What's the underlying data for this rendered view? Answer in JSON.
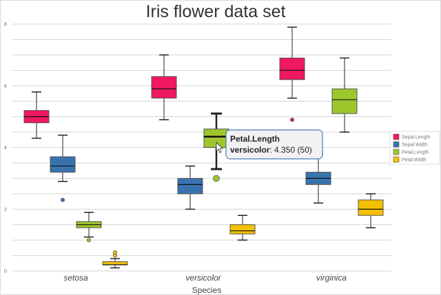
{
  "chart_data": {
    "type": "box",
    "title": "Iris flower data set",
    "xlabel": "Species",
    "ylabel": "",
    "ylim": [
      0,
      8
    ],
    "yticks": [
      0,
      2,
      4,
      6,
      8
    ],
    "grid": true,
    "legend_position": "right",
    "categories": [
      "setosa",
      "versicolor",
      "virginica"
    ],
    "series": [
      {
        "name": "Sepal.Length",
        "color": "#f0185e",
        "boxes": [
          {
            "min": 4.3,
            "q1": 4.8,
            "median": 5.0,
            "q3": 5.2,
            "max": 5.8,
            "outliers": []
          },
          {
            "min": 4.9,
            "q1": 5.6,
            "median": 5.9,
            "q3": 6.3,
            "max": 7.0,
            "outliers": []
          },
          {
            "min": 5.6,
            "q1": 6.2,
            "median": 6.5,
            "q3": 6.9,
            "max": 7.9,
            "outliers": [
              4.9
            ]
          }
        ]
      },
      {
        "name": "Sepal.Width",
        "color": "#3873ae",
        "boxes": [
          {
            "min": 2.9,
            "q1": 3.2,
            "median": 3.4,
            "q3": 3.7,
            "max": 4.4,
            "outliers": [
              2.3
            ]
          },
          {
            "min": 2.0,
            "q1": 2.5,
            "median": 2.8,
            "q3": 3.0,
            "max": 3.4,
            "outliers": []
          },
          {
            "min": 2.2,
            "q1": 2.8,
            "median": 3.0,
            "q3": 3.2,
            "max": 3.8,
            "outliers": []
          }
        ]
      },
      {
        "name": "Petal.Length",
        "color": "#9dc62d",
        "boxes": [
          {
            "min": 1.1,
            "q1": 1.4,
            "median": 1.5,
            "q3": 1.6,
            "max": 1.9,
            "outliers": [
              1.0
            ]
          },
          {
            "min": 3.3,
            "q1": 4.0,
            "median": 4.35,
            "q3": 4.6,
            "max": 5.1,
            "outliers": [
              3.0
            ]
          },
          {
            "min": 4.5,
            "q1": 5.1,
            "median": 5.55,
            "q3": 5.9,
            "max": 6.9,
            "outliers": []
          }
        ]
      },
      {
        "name": "Petal.Width",
        "color": "#f5c000",
        "boxes": [
          {
            "min": 0.1,
            "q1": 0.2,
            "median": 0.2,
            "q3": 0.3,
            "max": 0.4,
            "outliers": [
              0.5,
              0.6
            ]
          },
          {
            "min": 1.0,
            "q1": 1.2,
            "median": 1.3,
            "q3": 1.5,
            "max": 1.8,
            "outliers": []
          },
          {
            "min": 1.4,
            "q1": 1.8,
            "median": 2.0,
            "q3": 2.3,
            "max": 2.5,
            "outliers": []
          }
        ]
      }
    ],
    "tooltip": {
      "series_name": "Petal.Length",
      "category": "versicolor",
      "value_text": ": 4.350 (50)"
    },
    "highlighted": {
      "series": 2,
      "category": 1
    }
  }
}
